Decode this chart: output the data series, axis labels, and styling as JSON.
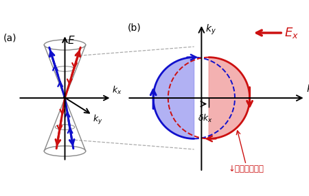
{
  "background_color": "#ffffff",
  "panel_a": {
    "label": "(a)",
    "blue_color": "#1010cc",
    "red_color": "#cc1010",
    "gray_color": "#888888",
    "cone_lw": 1.0,
    "line_lw": 2.2
  },
  "panel_b": {
    "label": "(b)",
    "ky_label": "k_y",
    "kx_label": "k_x",
    "Ex_text": "E_x",
    "spin_text": "↓スピンの蓄積",
    "delta_text": "δk_x",
    "R": 0.55,
    "shift": 0.1,
    "blue_fill": "#8888ee",
    "red_fill": "#ee8888",
    "blue_color": "#1010cc",
    "red_color": "#cc1010",
    "gray_dash": "#aaaaaa"
  },
  "figsize": [
    4.5,
    2.86
  ],
  "dpi": 100
}
